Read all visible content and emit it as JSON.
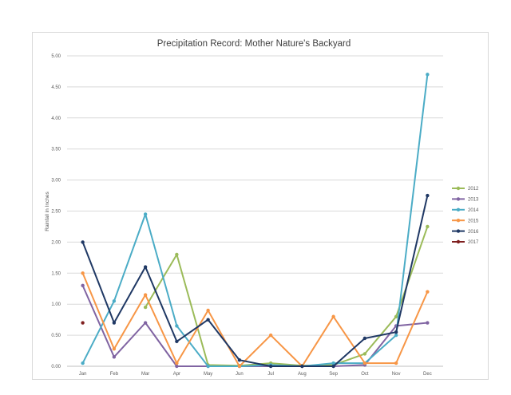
{
  "chart_data": {
    "type": "line",
    "title": "Precipitation Record: Mother Nature's Backyard",
    "xlabel": "",
    "ylabel": "Rainfall in Inches",
    "categories": [
      "Jan",
      "Feb",
      "Mar",
      "Apr",
      "May",
      "Jun",
      "Jul",
      "Aug",
      "Sep",
      "Oct",
      "Nov",
      "Dec"
    ],
    "y_ticks": [
      "0.00",
      "0.50",
      "1.00",
      "1.50",
      "2.00",
      "2.50",
      "3.00",
      "3.50",
      "4.00",
      "4.50",
      "5.00"
    ],
    "ylim": [
      0,
      5
    ],
    "grid": "horizontal",
    "legend_position": "right",
    "series": [
      {
        "name": "2012",
        "color": "#9bbb59",
        "values": [
          null,
          null,
          0.95,
          1.8,
          0.02,
          0.01,
          0.05,
          0.01,
          0.02,
          0.2,
          0.8,
          2.25
        ]
      },
      {
        "name": "2013",
        "color": "#8064a2",
        "values": [
          1.3,
          0.15,
          0.7,
          0.0,
          0.0,
          0.0,
          0.0,
          0.0,
          0.0,
          0.02,
          0.65,
          0.7
        ]
      },
      {
        "name": "2014",
        "color": "#4bacc6",
        "values": [
          0.05,
          1.05,
          2.45,
          0.65,
          0.0,
          0.0,
          0.02,
          0.0,
          0.05,
          0.05,
          0.5,
          4.7
        ]
      },
      {
        "name": "2015",
        "color": "#f79646",
        "values": [
          1.5,
          0.28,
          1.15,
          0.05,
          0.9,
          0.0,
          0.5,
          0.0,
          0.8,
          0.05,
          0.05,
          1.2
        ]
      },
      {
        "name": "2016",
        "color": "#1f3864",
        "values": [
          2.0,
          0.7,
          1.6,
          0.4,
          0.75,
          0.1,
          0.0,
          0.0,
          0.0,
          0.45,
          0.55,
          2.75
        ]
      },
      {
        "name": "2017",
        "color": "#7f1f1f",
        "values": [
          0.7,
          null,
          null,
          null,
          null,
          null,
          null,
          null,
          null,
          null,
          null,
          null
        ]
      }
    ]
  }
}
